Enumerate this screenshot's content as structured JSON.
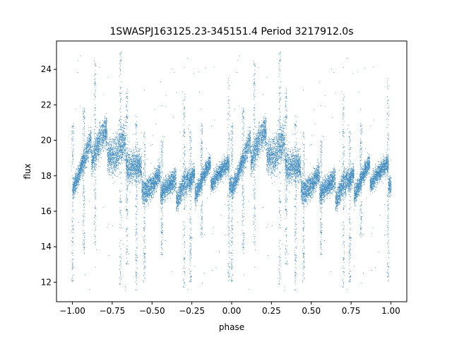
{
  "chart_data": {
    "type": "scatter",
    "title": "1SWASPJ163125.23-345151.4 Period 3217912.0s",
    "xlabel": "phase",
    "ylabel": "flux",
    "xlim": [
      -1.1,
      1.1
    ],
    "ylim": [
      10.9,
      25.6
    ],
    "xticks": [
      -1.0,
      -0.75,
      -0.5,
      -0.25,
      0.0,
      0.25,
      0.5,
      0.75,
      1.0
    ],
    "xtick_labels": [
      "−1.00",
      "−0.75",
      "−0.50",
      "−0.25",
      "0.00",
      "0.25",
      "0.50",
      "0.75",
      "1.00"
    ],
    "yticks": [
      12,
      14,
      16,
      18,
      20,
      22,
      24
    ],
    "ytick_labels": [
      "12",
      "14",
      "16",
      "18",
      "20",
      "22",
      "24"
    ],
    "grid": false,
    "legend": "none",
    "marker_color": "#1f77b4",
    "profile_phase": [
      0.0,
      0.03,
      0.07,
      0.1,
      0.13,
      0.16,
      0.2,
      0.24,
      0.27,
      0.3,
      0.33,
      0.36,
      0.4,
      0.43,
      0.46,
      0.5,
      0.54,
      0.58,
      0.62,
      0.66,
      0.7,
      0.74,
      0.78,
      0.82,
      0.86,
      0.9,
      0.94,
      0.97,
      1.0
    ],
    "profile_flux": [
      18.0,
      18.3,
      18.8,
      19.2,
      19.6,
      19.9,
      20.1,
      19.6,
      19.2,
      19.5,
      19.2,
      18.8,
      18.4,
      18.0,
      17.6,
      17.4,
      17.5,
      17.6,
      17.4,
      17.3,
      17.8,
      17.4,
      17.6,
      18.0,
      18.2,
      18.3,
      18.2,
      18.1,
      18.0
    ],
    "profile_spread": [
      0.9,
      1.0,
      1.2,
      1.3,
      1.4,
      1.5,
      1.6,
      1.7,
      1.8,
      1.9,
      1.8,
      1.6,
      1.5,
      1.4,
      1.2,
      1.1,
      1.1,
      1.0,
      1.0,
      1.1,
      1.4,
      1.1,
      1.0,
      0.9,
      0.9,
      0.9,
      0.9,
      0.9,
      0.9
    ],
    "vertical_streaks": [
      {
        "phase": 0.0,
        "low": 12.0,
        "high": 21.0
      },
      {
        "phase": 0.07,
        "low": 13.5,
        "high": 22.0
      },
      {
        "phase": 0.14,
        "low": 14.0,
        "high": 24.5
      },
      {
        "phase": 0.3,
        "low": 11.8,
        "high": 25.0
      },
      {
        "phase": 0.34,
        "low": 13.0,
        "high": 23.0
      },
      {
        "phase": 0.4,
        "low": 11.5,
        "high": 21.5
      },
      {
        "phase": 0.45,
        "low": 12.0,
        "high": 20.5
      },
      {
        "phase": 0.56,
        "low": 13.5,
        "high": 20.0
      },
      {
        "phase": 0.7,
        "low": 11.6,
        "high": 22.5
      },
      {
        "phase": 0.74,
        "low": 11.9,
        "high": 20.5
      },
      {
        "phase": 0.81,
        "low": 14.5,
        "high": 21.0
      },
      {
        "phase": 0.98,
        "low": 12.0,
        "high": 23.5
      }
    ]
  }
}
